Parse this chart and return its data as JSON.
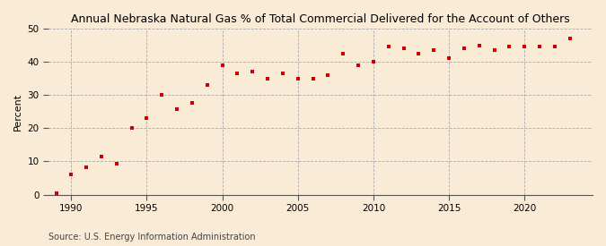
{
  "title": "Annual Nebraska Natural Gas % of Total Commercial Delivered for the Account of Others",
  "ylabel": "Percent",
  "source": "Source: U.S. Energy Information Administration",
  "background_color": "#faebd7",
  "marker_color": "#cc0000",
  "xlim": [
    1988.5,
    2024.5
  ],
  "ylim": [
    0,
    50
  ],
  "yticks": [
    0,
    10,
    20,
    30,
    40,
    50
  ],
  "xticks": [
    1990,
    1995,
    2000,
    2005,
    2010,
    2015,
    2020
  ],
  "years": [
    1989,
    1990,
    1991,
    1992,
    1993,
    1994,
    1995,
    1996,
    1997,
    1998,
    1999,
    2000,
    2001,
    2002,
    2003,
    2004,
    2005,
    2006,
    2007,
    2008,
    2009,
    2010,
    2011,
    2012,
    2013,
    2014,
    2015,
    2016,
    2017,
    2018,
    2019,
    2020,
    2021,
    2022,
    2023
  ],
  "values": [
    0.5,
    6.0,
    8.2,
    11.5,
    9.2,
    20.0,
    23.0,
    30.0,
    25.8,
    27.7,
    33.0,
    39.0,
    36.5,
    37.0,
    35.0,
    36.5,
    35.0,
    35.0,
    36.0,
    42.5,
    39.0,
    40.0,
    44.5,
    44.0,
    42.5,
    43.5,
    41.0,
    44.0,
    45.0,
    43.5,
    44.5,
    44.5,
    44.5,
    44.5,
    47.0
  ]
}
